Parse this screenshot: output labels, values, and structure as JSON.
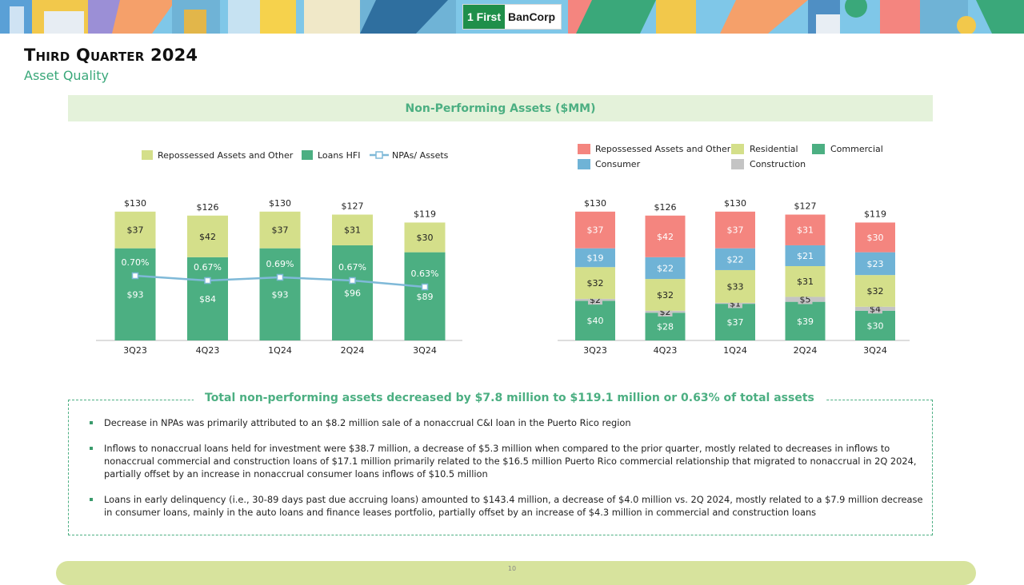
{
  "header": {
    "logo_mark": "1 First",
    "logo_text": "BanCorp",
    "title": "Third Quarter 2024",
    "subtitle": "Asset Quality",
    "section_title": "Non-Performing Assets ($MM)"
  },
  "colors": {
    "green": "#4caf82",
    "lime": "#d4df8a",
    "salmon": "#f4857f",
    "blue": "#6fb3d6",
    "gray": "#c4c4c4",
    "line": "#7fb9d8"
  },
  "chart_data": [
    {
      "type": "bar",
      "stacked": true,
      "categories": [
        "3Q23",
        "4Q23",
        "1Q24",
        "2Q24",
        "3Q24"
      ],
      "series": [
        {
          "name": "Loans HFI",
          "values": [
            93,
            84,
            93,
            96,
            89
          ],
          "labels": [
            "$93",
            "$84",
            "$93",
            "$96",
            "$89"
          ]
        },
        {
          "name": "Repossessed Assets and Other",
          "values": [
            37,
            42,
            37,
            31,
            30
          ],
          "labels": [
            "$37",
            "$42",
            "$37",
            "$31",
            "$30"
          ]
        }
      ],
      "totals": [
        130,
        126,
        130,
        127,
        119
      ],
      "total_labels": [
        "$130",
        "$126",
        "$130",
        "$127",
        "$119"
      ],
      "line": {
        "name": "NPAs/ Assets",
        "values": [
          0.7,
          0.67,
          0.69,
          0.67,
          0.63
        ],
        "labels": [
          "0.70%",
          "0.67%",
          "0.69%",
          "0.67%",
          "0.63%"
        ]
      },
      "legend": [
        "Repossessed Assets and Other",
        "Loans HFI",
        "NPAs/ Assets"
      ],
      "ylim": [
        0,
        140
      ]
    },
    {
      "type": "bar",
      "stacked": true,
      "categories": [
        "3Q23",
        "4Q23",
        "1Q24",
        "2Q24",
        "3Q24"
      ],
      "series": [
        {
          "name": "Commercial",
          "values": [
            40,
            28,
            37,
            39,
            30
          ],
          "labels": [
            "$40",
            "$28",
            "$37",
            "$39",
            "$30"
          ]
        },
        {
          "name": "Construction",
          "values": [
            2,
            2,
            1,
            5,
            4
          ],
          "labels": [
            "$2",
            "$2",
            "$1",
            "$5",
            "$4"
          ]
        },
        {
          "name": "Residential",
          "values": [
            32,
            32,
            33,
            31,
            32
          ],
          "labels": [
            "$32",
            "$32",
            "$33",
            "$31",
            "$32"
          ]
        },
        {
          "name": "Consumer",
          "values": [
            19,
            22,
            22,
            21,
            23
          ],
          "labels": [
            "$19",
            "$22",
            "$22",
            "$21",
            "$23"
          ]
        },
        {
          "name": "Repossessed Assets and Other",
          "values": [
            37,
            42,
            37,
            31,
            30
          ],
          "labels": [
            "$37",
            "$42",
            "$37",
            "$31",
            "$30"
          ]
        }
      ],
      "totals": [
        130,
        126,
        130,
        127,
        119
      ],
      "total_labels": [
        "$130",
        "$126",
        "$130",
        "$127",
        "$119"
      ],
      "legend": [
        "Repossessed Assets and Other",
        "Residential",
        "Commercial",
        "Consumer",
        "Construction"
      ],
      "ylim": [
        0,
        140
      ]
    }
  ],
  "summary": {
    "title": "Total non-performing assets decreased by $7.8 million to $119.1 million or 0.63% of total assets",
    "bullets": [
      "Decrease in NPAs was primarily attributed to an $8.2 million sale of a nonaccrual C&I loan in the Puerto Rico region",
      "Inflows to nonaccrual loans held for investment were $38.7 million, a decrease of $5.3 million when compared to the prior quarter, mostly related to decreases in inflows to nonaccrual commercial and construction loans of $17.1 million primarily related to the $16.5 million Puerto Rico commercial relationship that migrated to nonaccrual in 2Q 2024, partially offset by an increase in nonaccrual consumer loans inflows of $10.5 million",
      "Loans in early delinquency (i.e., 30-89 days past due accruing loans) amounted to $143.4 million, a decrease of $4.0 million vs. 2Q 2024, mostly related to a $7.9 million decrease in consumer loans, mainly in the auto loans and finance leases portfolio, partially offset by an increase of $4.3 million in commercial and construction loans"
    ]
  },
  "footer": {
    "page_number": "10"
  }
}
